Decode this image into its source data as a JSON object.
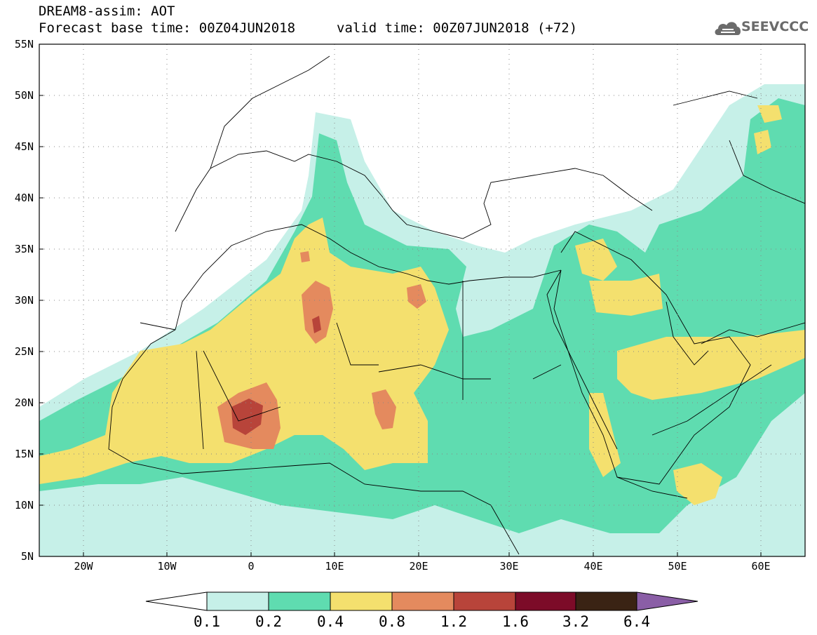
{
  "header": {
    "title": "DREAM8-assim: AOT",
    "base_time": "Forecast base time: 00Z04JUN2018",
    "valid_time": "valid time: 00Z07JUN2018 (+72)"
  },
  "logo": {
    "text": "SEEVCCC",
    "icon": "cloud-icon"
  },
  "axes": {
    "lat_labels": [
      "55N",
      "50N",
      "45N",
      "40N",
      "35N",
      "30N",
      "25N",
      "20N",
      "15N",
      "10N",
      "5N"
    ],
    "lon_labels": [
      "20W",
      "10W",
      "0",
      "10E",
      "20E",
      "30E",
      "40E",
      "50E",
      "60E"
    ]
  },
  "colorbar": {
    "levels": [
      "0.1",
      "0.2",
      "0.4",
      "0.8",
      "1.2",
      "1.6",
      "3.2",
      "6.4"
    ],
    "colors": {
      "below": "#ffffff",
      "c1": "#c6f0e8",
      "c2": "#5fdcb0",
      "c3": "#f4e06e",
      "c4": "#e48a5e",
      "c5": "#b8443a",
      "c6": "#7c0b28",
      "c7": "#3a2314",
      "above": "#8a5ea6"
    }
  }
}
